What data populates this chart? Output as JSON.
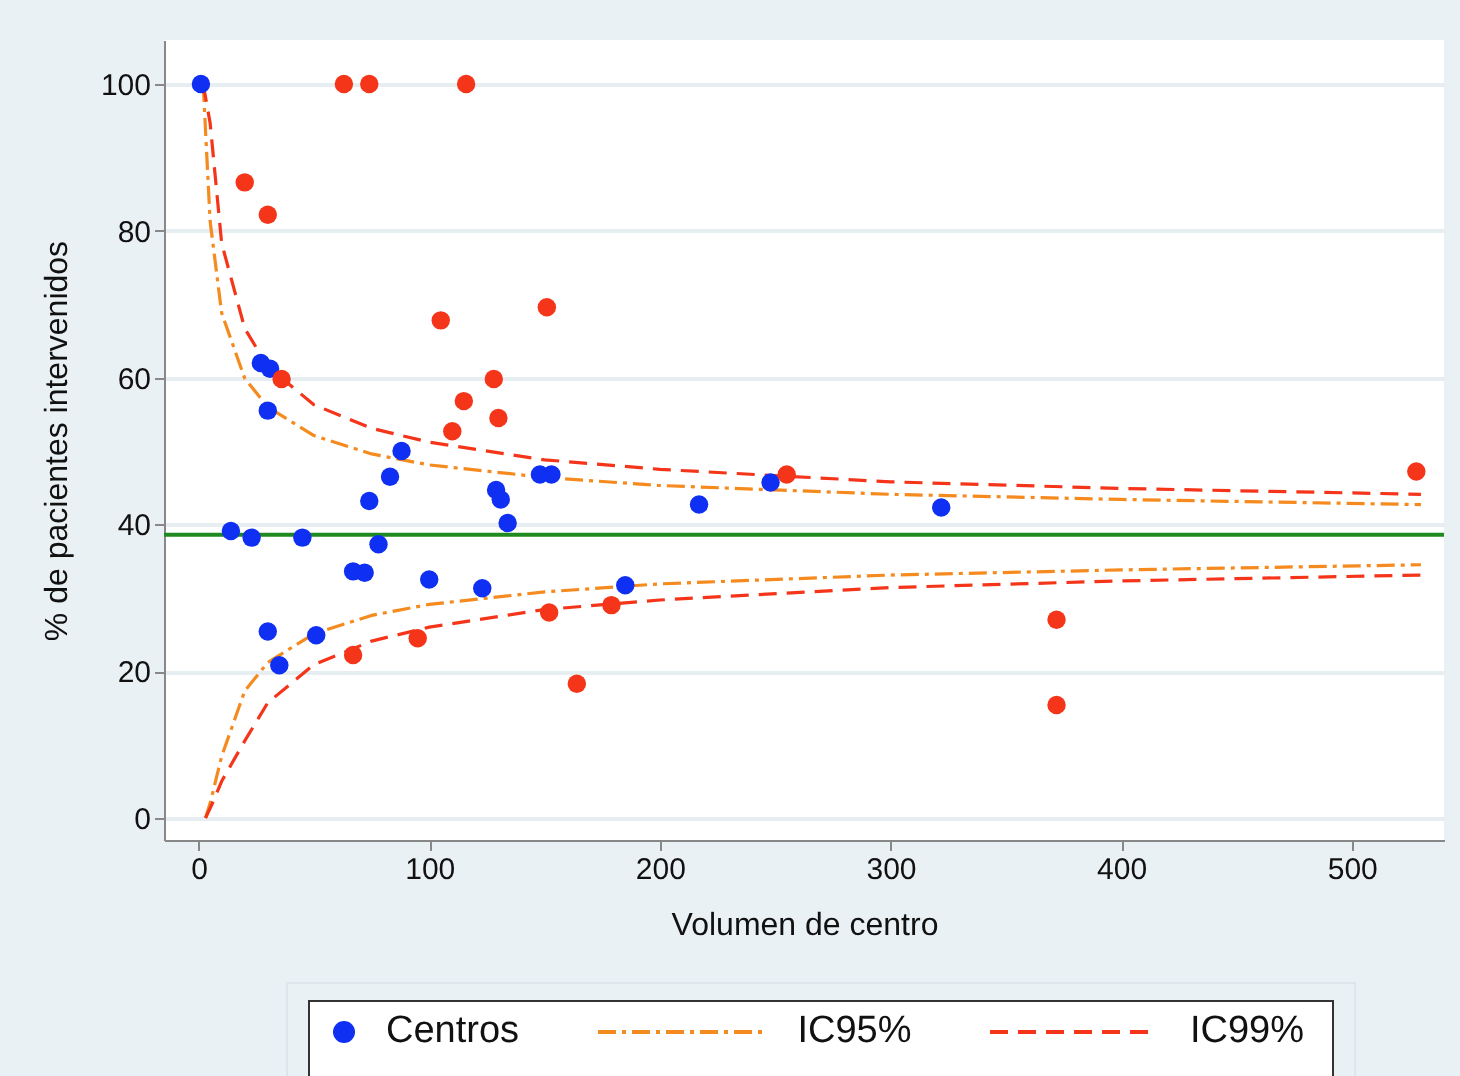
{
  "chart_data": {
    "type": "scatter",
    "xlabel": "Volumen de centro",
    "ylabel": "% de pacientes intervenidos",
    "xlim": [
      -15,
      540
    ],
    "xticks": [
      0,
      100,
      200,
      300,
      400,
      500
    ],
    "ylim": [
      -3,
      106
    ],
    "yticks": [
      0,
      20,
      40,
      60,
      80,
      100
    ],
    "grid": "y",
    "legend": "bottom",
    "ref_lines": [
      {
        "axis": "y",
        "value": 38.6,
        "color": "#1f8a1f"
      }
    ],
    "series": [
      {
        "name": "Centros",
        "marker": "circle",
        "color": "#0f2ff2",
        "x": [
          1,
          14,
          23,
          45,
          30,
          35,
          51,
          67,
          72,
          74,
          78,
          83,
          88,
          100,
          123,
          129,
          131,
          134,
          148,
          153,
          30,
          27,
          31,
          185,
          217,
          248,
          322
        ],
        "values": [
          100,
          39.1,
          38.2,
          38.2,
          25.4,
          20.8,
          24.9,
          33.6,
          33.4,
          43.2,
          37.3,
          46.5,
          50,
          32.5,
          31.3,
          44.7,
          43.4,
          40.2,
          46.8,
          46.8,
          55.5,
          62,
          61.2,
          31.7,
          42.7,
          45.7,
          42.3
        ]
      },
      {
        "marker": "circle",
        "color": "#f5351a",
        "x": [
          63,
          74,
          116,
          20,
          30,
          105,
          151,
          36,
          128,
          115,
          130,
          110,
          67,
          95,
          152,
          164,
          179,
          255,
          372,
          372,
          528
        ],
        "values": [
          100,
          100,
          100,
          86.6,
          82.2,
          67.8,
          69.6,
          59.8,
          59.8,
          56.8,
          54.5,
          52.7,
          22.2,
          24.5,
          28,
          18.3,
          29,
          46.8,
          27,
          15.4,
          47.2
        ]
      },
      {
        "name": "IC95%",
        "type": "line",
        "line_style": "dashdot",
        "color": "#f58a1f",
        "x": [
          2,
          3,
          5,
          10,
          20,
          30,
          50,
          75,
          100,
          150,
          200,
          300,
          400,
          530
        ],
        "values": [
          100,
          93.7,
          81.3,
          68.8,
          59.9,
          56,
          52.1,
          49.6,
          48.1,
          46.4,
          45.3,
          44.1,
          43.4,
          42.7
        ]
      },
      {
        "type": "line",
        "line_style": "dashdot",
        "color": "#f58a1f",
        "x": [
          3,
          5,
          10,
          20,
          30,
          50,
          75,
          100,
          150,
          200,
          300,
          400,
          530
        ],
        "values": [
          0,
          2,
          8.4,
          17.3,
          21.2,
          25.1,
          27.6,
          29.1,
          30.8,
          31.9,
          33.1,
          33.8,
          34.5
        ]
      },
      {
        "name": "IC99%",
        "type": "line",
        "line_style": "dashed",
        "color": "#f5351a",
        "x": [
          2,
          5,
          10,
          20,
          30,
          50,
          75,
          100,
          150,
          200,
          300,
          400,
          530
        ],
        "values": [
          100,
          94.7,
          78.3,
          66.7,
          61.5,
          56.3,
          53.1,
          51.2,
          48.8,
          47.5,
          45.8,
          44.9,
          44.1
        ]
      },
      {
        "type": "line",
        "line_style": "dashed",
        "color": "#f5351a",
        "x": [
          3,
          6,
          10,
          20,
          30,
          50,
          75,
          100,
          150,
          200,
          300,
          400,
          530
        ],
        "values": [
          0,
          2,
          5,
          10.5,
          15.7,
          20.9,
          24.1,
          26,
          28.4,
          29.7,
          31.4,
          32.3,
          33.1
        ]
      }
    ]
  }
}
